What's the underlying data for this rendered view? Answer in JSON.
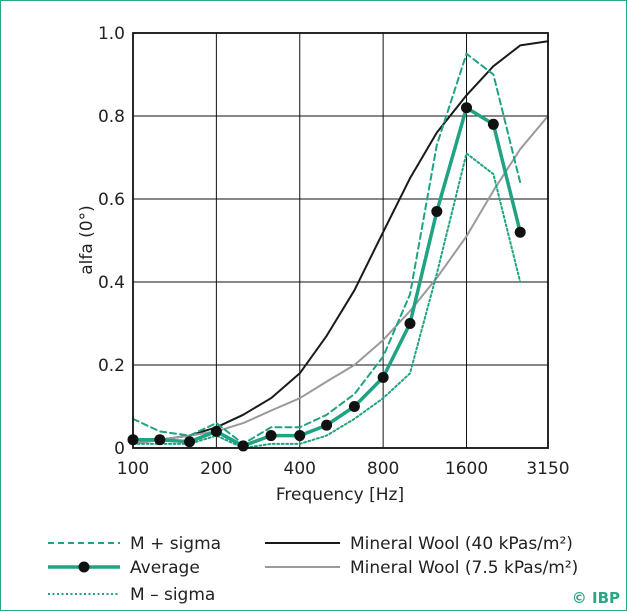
{
  "chart_data": {
    "type": "line",
    "xlabel": "Frequency [Hz]",
    "ylabel": "alfa (0°)",
    "x_scale": "log",
    "xlim": [
      100,
      3150
    ],
    "ylim": [
      0,
      1.0
    ],
    "x_tick_values": [
      100,
      200,
      400,
      800,
      1600,
      3150
    ],
    "x_tick_labels": [
      "100",
      "200",
      "400",
      "800",
      "1600",
      "3150"
    ],
    "y_tick_values": [
      0,
      0.2,
      0.4,
      0.6,
      0.8,
      1.0
    ],
    "y_tick_labels": [
      "0",
      "0.2",
      "0.4",
      "0.6",
      "0.8",
      "1.0"
    ],
    "grid": true,
    "legend_position": "bottom",
    "series": [
      {
        "name": "M + sigma",
        "style": "dashed",
        "color": "#1fa383",
        "x": [
          100,
          125,
          160,
          200,
          250,
          315,
          400,
          500,
          630,
          800,
          1000,
          1250,
          1600,
          2000,
          2500
        ],
        "y": [
          0.07,
          0.04,
          0.03,
          0.06,
          0.01,
          0.05,
          0.05,
          0.08,
          0.13,
          0.22,
          0.37,
          0.73,
          0.95,
          0.9,
          0.64
        ]
      },
      {
        "name": "Average",
        "style": "solid-markers",
        "color": "#1fa383",
        "x": [
          100,
          125,
          160,
          200,
          250,
          315,
          400,
          500,
          630,
          800,
          1000,
          1250,
          1600,
          2000,
          2500
        ],
        "y": [
          0.02,
          0.02,
          0.015,
          0.04,
          0.005,
          0.03,
          0.03,
          0.055,
          0.1,
          0.17,
          0.3,
          0.57,
          0.82,
          0.78,
          0.52
        ]
      },
      {
        "name": "M – sigma",
        "style": "dotted",
        "color": "#1fa383",
        "x": [
          100,
          125,
          160,
          200,
          250,
          315,
          400,
          500,
          630,
          800,
          1000,
          1250,
          1600,
          2000,
          2500
        ],
        "y": [
          0.01,
          0.01,
          0.01,
          0.03,
          0.0,
          0.01,
          0.01,
          0.03,
          0.07,
          0.12,
          0.18,
          0.42,
          0.71,
          0.66,
          0.4
        ]
      },
      {
        "name": "Mineral Wool (40 kPas/m²)",
        "style": "solid",
        "color": "#1a1a1a",
        "x": [
          100,
          125,
          160,
          200,
          250,
          315,
          400,
          500,
          630,
          800,
          1000,
          1250,
          1600,
          2000,
          2500,
          3150
        ],
        "y": [
          0.01,
          0.02,
          0.03,
          0.05,
          0.08,
          0.12,
          0.18,
          0.27,
          0.38,
          0.52,
          0.65,
          0.76,
          0.85,
          0.92,
          0.97,
          0.98
        ]
      },
      {
        "name": "Mineral Wool (7.5 kPas/m²)",
        "style": "solid",
        "color": "#9a9a9a",
        "x": [
          100,
          125,
          160,
          200,
          250,
          315,
          400,
          500,
          630,
          800,
          1000,
          1250,
          1600,
          2000,
          2500,
          3150
        ],
        "y": [
          0.01,
          0.02,
          0.03,
          0.04,
          0.06,
          0.09,
          0.12,
          0.16,
          0.2,
          0.26,
          0.33,
          0.41,
          0.51,
          0.62,
          0.72,
          0.8
        ]
      }
    ]
  },
  "legend": {
    "items": [
      {
        "label": "M + sigma"
      },
      {
        "label": "Average"
      },
      {
        "label": "M – sigma"
      },
      {
        "label": "Mineral Wool (40 kPas/m²)"
      },
      {
        "label": "Mineral Wool (7.5 kPas/m²)"
      }
    ]
  },
  "copyright": "© IBP",
  "colors": {
    "accent": "#1fa383",
    "frame": "#2aa787",
    "grid": "#1a1a1a"
  }
}
